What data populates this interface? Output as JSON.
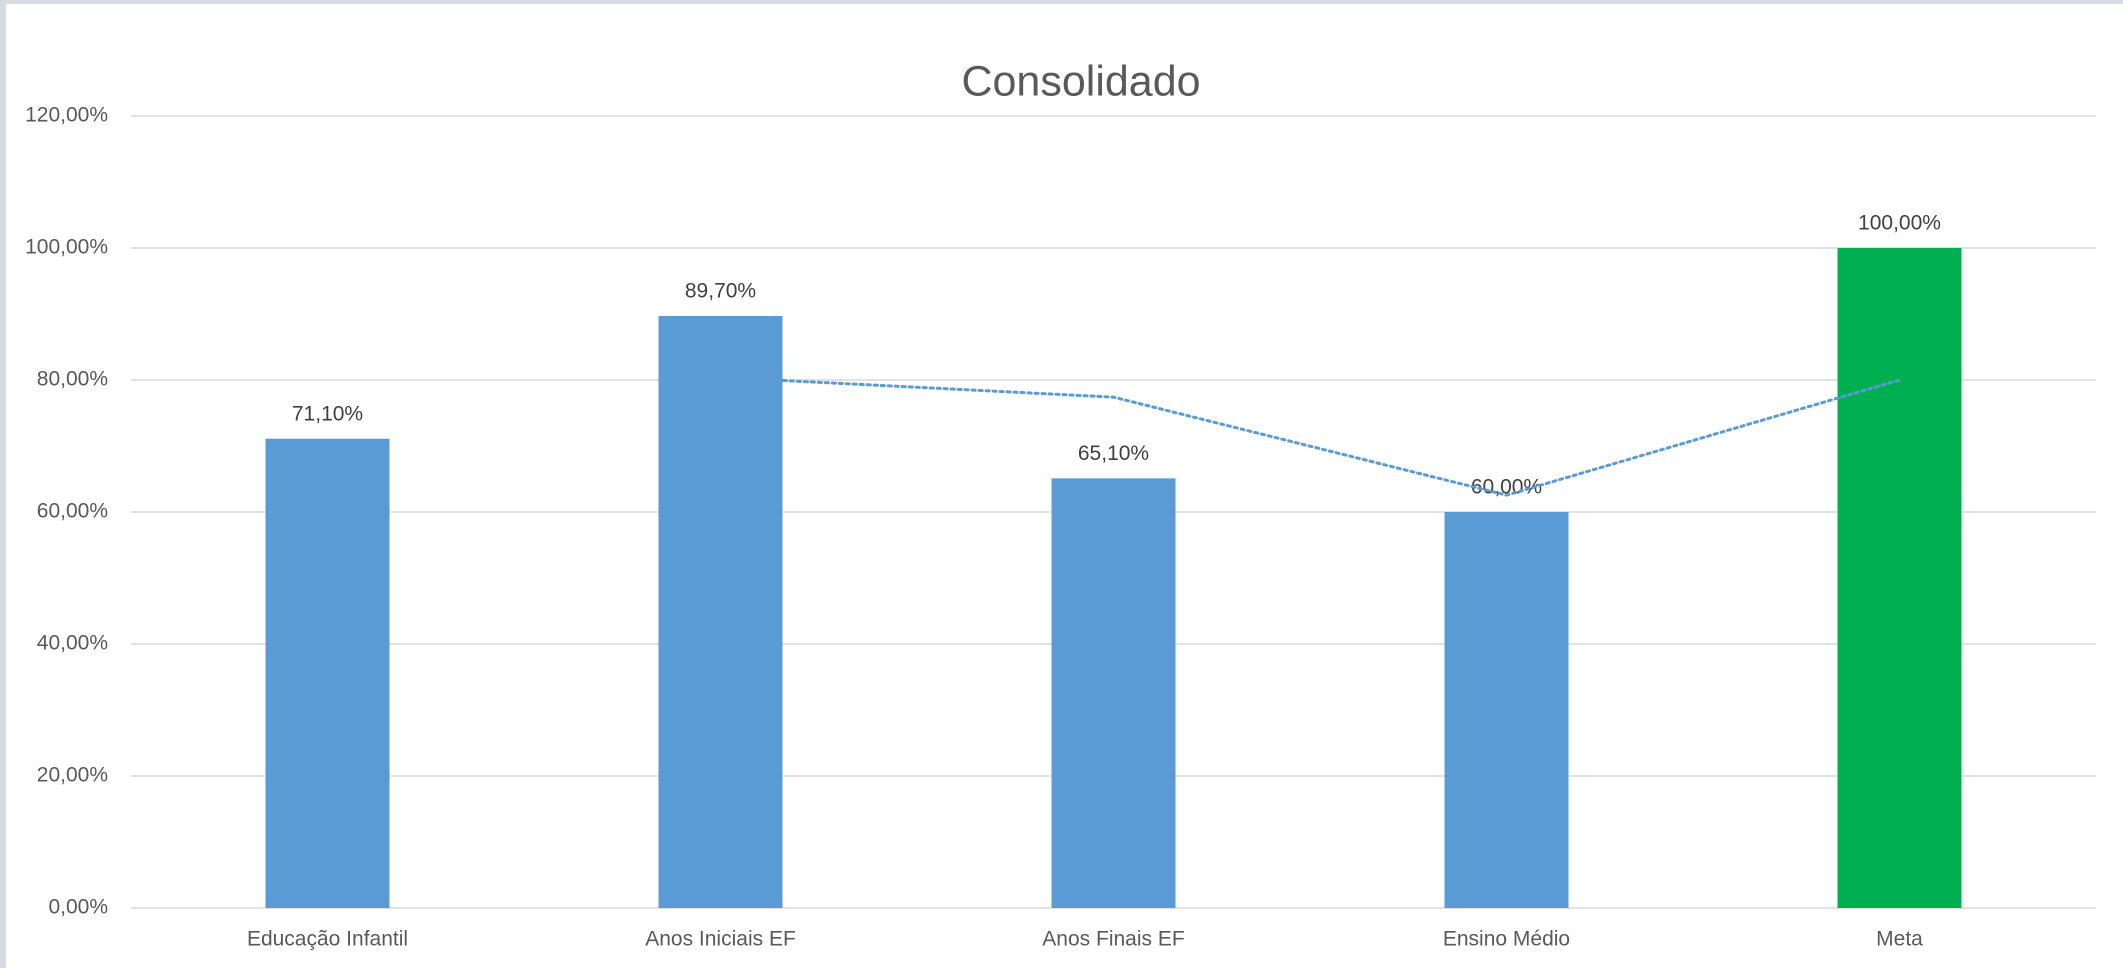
{
  "chart_data": {
    "type": "bar",
    "title": "Consolidado",
    "categories": [
      "Educação Infantil",
      "Anos Iniciais EF",
      "Anos Finais EF",
      "Ensino Médio",
      "Meta"
    ],
    "values": [
      71.1,
      89.7,
      65.1,
      60,
      100
    ],
    "value_labels": [
      "71,10%",
      "89,70%",
      "65,10%",
      "60,00%",
      "100,00%"
    ],
    "colors": [
      "#5b9bd5",
      "#5b9bd5",
      "#5b9bd5",
      "#5b9bd5",
      "#00b050"
    ],
    "trend": {
      "values": [
        null,
        80.4,
        77.4,
        62.55,
        80
      ],
      "color": "#5b9bd5",
      "style": "dotted"
    },
    "ylim": [
      0,
      120
    ],
    "yticks": [
      {
        "value": 0,
        "label": "0,00%"
      },
      {
        "value": 20,
        "label": "20,00%"
      },
      {
        "value": 40,
        "label": "40,00%"
      },
      {
        "value": 60,
        "label": "60,00%"
      },
      {
        "value": 80,
        "label": "80,00%"
      },
      {
        "value": 100,
        "label": "100,00%"
      },
      {
        "value": 120,
        "label": "120,00%"
      }
    ],
    "grid": true
  }
}
